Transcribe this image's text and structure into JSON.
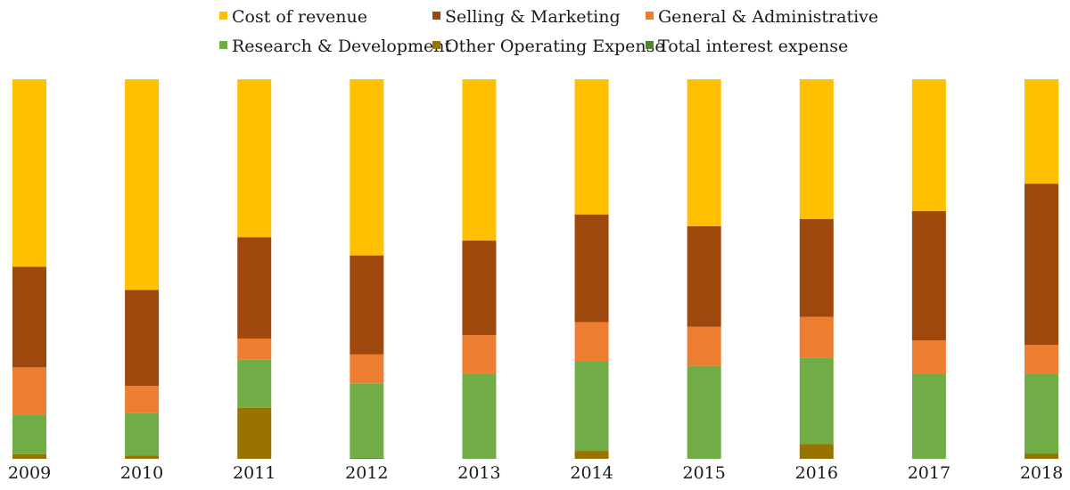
{
  "chart_data": {
    "type": "bar",
    "stacked": "percent",
    "categories": [
      "2009",
      "2010",
      "2011",
      "2012",
      "2013",
      "2014",
      "2015",
      "2016",
      "2017",
      "2018"
    ],
    "series": [
      {
        "name": "Total interest expense",
        "color": "#548235",
        "values": [
          0.0,
          0.0,
          0.0,
          0.3,
          0.0,
          0.0,
          0.0,
          0.0,
          0.0,
          0.0
        ]
      },
      {
        "name": "Other Operating Expense",
        "color": "#997300",
        "values": [
          1.2,
          0.9,
          13.4,
          0.0,
          0.0,
          2.1,
          0.0,
          3.9,
          0.0,
          1.4
        ]
      },
      {
        "name": "Research & Development",
        "color": "#70AD47",
        "values": [
          10.5,
          11.1,
          12.7,
          19.6,
          22.5,
          23.6,
          24.5,
          22.8,
          22.3,
          21.0
        ]
      },
      {
        "name": "General & Administrative",
        "color": "#ED7D31",
        "values": [
          12.4,
          7.2,
          5.6,
          7.6,
          10.1,
          10.3,
          10.3,
          10.7,
          8.9,
          7.6
        ]
      },
      {
        "name": "Selling & Marketing",
        "color": "#9E480E",
        "values": [
          26.5,
          25.3,
          26.7,
          26.1,
          24.9,
          28.4,
          26.5,
          25.8,
          34.1,
          42.5
        ]
      },
      {
        "name": "Cost of revenue",
        "color": "#FFC000",
        "values": [
          49.4,
          55.5,
          41.6,
          46.4,
          42.5,
          35.6,
          38.7,
          36.8,
          34.7,
          27.5
        ]
      }
    ],
    "legend_position": "top",
    "legend": {
      "row1": [
        "Cost of revenue",
        "Selling & Marketing",
        "General & Administrative"
      ],
      "row2": [
        "Research & Development",
        "Other Operating Expense",
        "Total interest expense"
      ]
    },
    "ylim": [
      0,
      100
    ],
    "grid": false
  }
}
